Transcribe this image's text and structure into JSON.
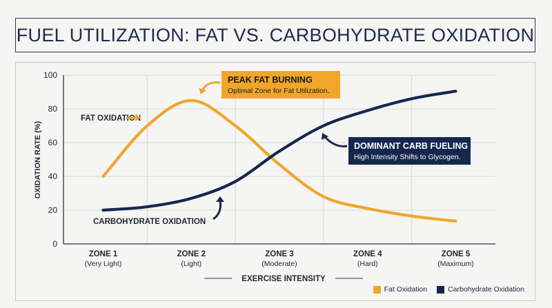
{
  "title": "FUEL UTILIZATION: FAT VS. CARBOHYDRATE OXIDATION",
  "colors": {
    "fat": "#efa62a",
    "carb": "#16264f",
    "grid": "#d6d6d3",
    "text": "#1e2533"
  },
  "chart_data": {
    "type": "line",
    "title": "FUEL UTILIZATION: FAT VS. CARBOHYDRATE OXIDATION",
    "xlabel": "EXERCISE INTENSITY",
    "ylabel": "OXIDATION RATE (%)",
    "ylim": [
      0,
      100
    ],
    "yticks": [
      0,
      20,
      40,
      60,
      80,
      100
    ],
    "grid": true,
    "legend_position": "bottom-right",
    "categories": [
      {
        "label": "ZONE 1",
        "sub": "(Very Light)"
      },
      {
        "label": "ZONE 2",
        "sub": "(Light)"
      },
      {
        "label": "ZONE 3",
        "sub": "(Moderate)"
      },
      {
        "label": "ZONE 4",
        "sub": "(Hard)"
      },
      {
        "label": "ZONE 5",
        "sub": "(Maximum)"
      }
    ],
    "series": [
      {
        "name": "Fat Oxidation",
        "inline_label": "FAT OXIDATION",
        "color": "#efa62a",
        "points": [
          [
            1,
            40
          ],
          [
            1.5,
            70
          ],
          [
            2,
            85
          ],
          [
            2.5,
            70
          ],
          [
            3,
            47
          ],
          [
            3.5,
            28
          ],
          [
            4,
            21
          ],
          [
            4.5,
            16.5
          ],
          [
            5,
            13.5
          ]
        ]
      },
      {
        "name": "Carbohydrate Oxidation",
        "inline_label": "CARBOHYDRATE OXIDATION",
        "color": "#16264f",
        "points": [
          [
            1,
            20
          ],
          [
            1.5,
            22
          ],
          [
            2,
            27
          ],
          [
            2.5,
            37
          ],
          [
            3,
            55
          ],
          [
            3.5,
            70
          ],
          [
            4,
            79
          ],
          [
            4.5,
            86
          ],
          [
            5,
            90.5
          ]
        ]
      }
    ],
    "annotations": [
      {
        "title": "PEAK FAT BURNING",
        "text": "Optimal Zone for Fat Utilization.",
        "color": "#efa62a"
      },
      {
        "title": "DOMINANT CARB FUELING",
        "text": "High Intensity Shifts to Glycogen.",
        "color": "#16264f"
      }
    ]
  }
}
